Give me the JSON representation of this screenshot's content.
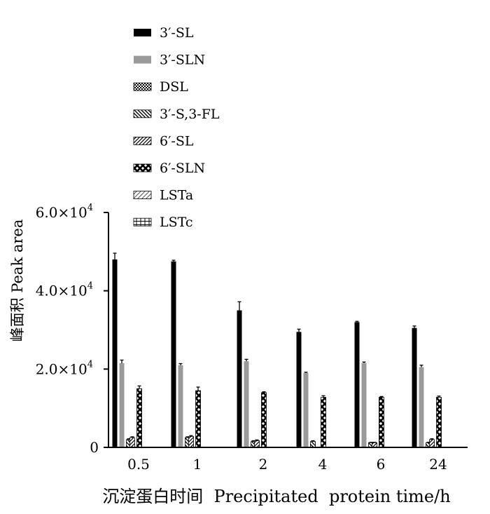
{
  "chart_data": {
    "type": "bar",
    "categories": [
      "0.5",
      "1",
      "2",
      "4",
      "6",
      "24"
    ],
    "xlabel": "沉淀蛋白时间  Precipitated  protein time/h",
    "ylabel": "峰面积  Peak area",
    "ylim": [
      0,
      60000
    ],
    "yticks": [
      {
        "value": 0,
        "label": "0"
      },
      {
        "value": 20000,
        "label": "2.0×10",
        "exp": "4"
      },
      {
        "value": 40000,
        "label": "4.0×10",
        "exp": "4"
      },
      {
        "value": 60000,
        "label": "6.0×10",
        "exp": "4"
      }
    ],
    "legend_position": "top-left",
    "series": [
      {
        "name": "3′-SL",
        "pattern": "solid-black",
        "values": [
          48000,
          47500,
          35000,
          29500,
          32000,
          30500
        ],
        "errors": [
          1600,
          300,
          2200,
          700,
          200,
          500
        ]
      },
      {
        "name": "3′-SLN",
        "pattern": "solid-gray",
        "values": [
          21500,
          21000,
          22000,
          19000,
          21500,
          20500
        ],
        "errors": [
          800,
          400,
          500,
          200,
          300,
          500
        ]
      },
      {
        "name": "DSL",
        "pattern": "checker",
        "values": [
          0,
          0,
          0,
          1000,
          0,
          0
        ],
        "errors": [
          0,
          0,
          0,
          100,
          0,
          0
        ]
      },
      {
        "name": "3′-S,3-FL",
        "pattern": "diag-back-dense",
        "values": [
          2000,
          2500,
          1500,
          1500,
          1200,
          1200
        ],
        "errors": [
          200,
          200,
          200,
          200,
          100,
          100
        ]
      },
      {
        "name": "6′-SL",
        "pattern": "diag-fwd-dense",
        "values": [
          2500,
          2800,
          1700,
          0,
          1200,
          2000
        ],
        "errors": [
          200,
          200,
          200,
          0,
          100,
          200
        ]
      },
      {
        "name": "6′-SLN",
        "pattern": "xx",
        "values": [
          15000,
          14500,
          14000,
          12800,
          12800,
          12800
        ],
        "errors": [
          700,
          900,
          200,
          400,
          200,
          300
        ]
      },
      {
        "name": "LSTa",
        "pattern": "diag-fwd-light",
        "values": [
          0,
          0,
          0,
          0,
          0,
          0
        ],
        "errors": [
          0,
          0,
          0,
          0,
          0,
          0
        ]
      },
      {
        "name": "LSTc",
        "pattern": "grid",
        "values": [
          0,
          0,
          0,
          0,
          0,
          0
        ],
        "errors": [
          0,
          0,
          0,
          0,
          0,
          0
        ]
      }
    ]
  }
}
